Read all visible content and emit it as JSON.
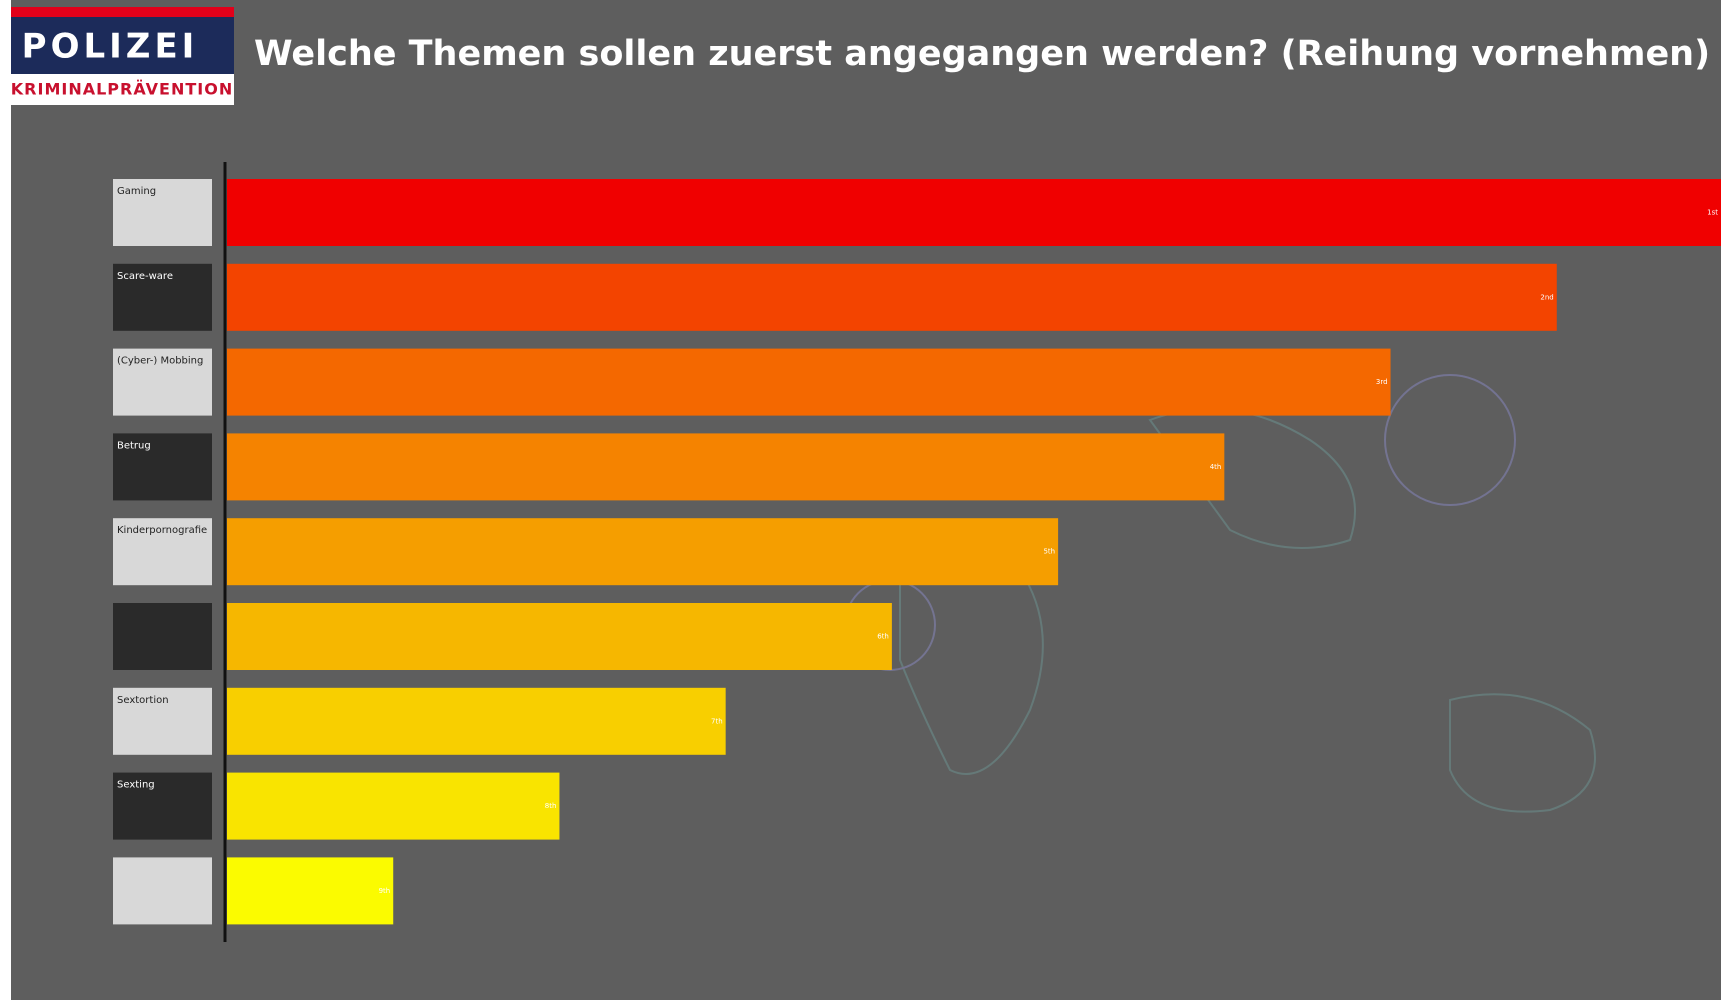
{
  "header": {
    "logo_title": "POLIZEI",
    "logo_subtitle": "KRIMINALPRÄVENTION"
  },
  "chart_data": {
    "type": "bar",
    "orientation": "horizontal",
    "title": "Welche Themen sollen zuerst angegangen werden? (Reihung vornehmen)",
    "categories": [
      "Gaming",
      "Scare-ware",
      "(Cyber-) Mobbing",
      "Betrug",
      "Kinderpornografie",
      null,
      "Sextortion",
      "Sexting",
      null
    ],
    "values": [
      1,
      2,
      3,
      4,
      5,
      6,
      7,
      8,
      9
    ],
    "value_labels": [
      "1st",
      "2nd",
      "3rd",
      "4th",
      "5th",
      "6th",
      "7th",
      "8th",
      "9th"
    ],
    "colors": [
      "#f00000",
      "#f34400",
      "#f46800",
      "#f58300",
      "#f59e00",
      "#f6b700",
      "#f8cf00",
      "#f9e400",
      "#fbfb00"
    ],
    "xlim": [
      10,
      1
    ]
  }
}
